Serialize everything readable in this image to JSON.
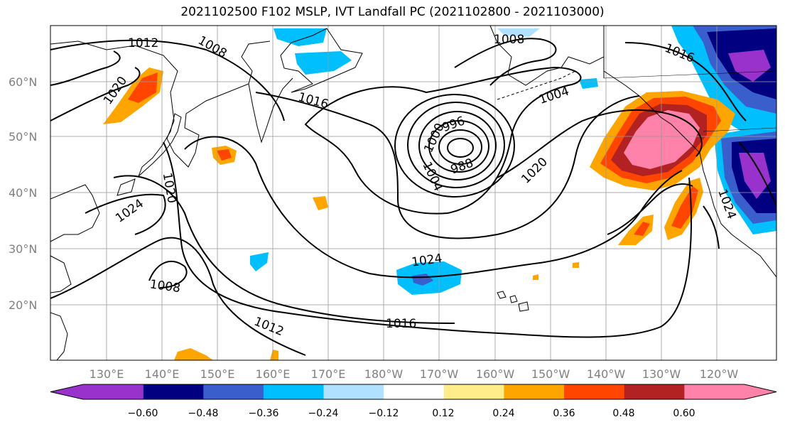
{
  "title": "2021102500 F102 MSLP, IVT Landfall PC (2021102800 - 2021103000)",
  "lat_ticks": [
    "60°N",
    "50°N",
    "40°N",
    "30°N",
    "20°N"
  ],
  "lon_ticks": [
    "130°E",
    "140°E",
    "150°E",
    "160°E",
    "170°E",
    "180°W",
    "170°W",
    "160°W",
    "150°W",
    "140°W",
    "130°W",
    "120°W"
  ],
  "colorbar": {
    "ticks": [
      "−0.60",
      "−0.48",
      "−0.36",
      "−0.24",
      "−0.12",
      "0.12",
      "0.24",
      "0.36",
      "0.48",
      "0.60"
    ],
    "colors": [
      "#9932CC",
      "#000080",
      "#3A5FCD",
      "#00BFFF",
      "#B0E2FF",
      "#FFFFFF",
      "#FFEC8B",
      "#FFA500",
      "#FF4500",
      "#B22222",
      "#FF82AB"
    ]
  },
  "contour_labels": [
    "1012",
    "1008",
    "1016",
    "1020",
    "1024",
    "1008",
    "1012",
    "1016",
    "1024",
    "996",
    "1000",
    "1004",
    "988",
    "1020",
    "1004",
    "1008",
    "1020",
    "1016",
    "1024"
  ]
}
